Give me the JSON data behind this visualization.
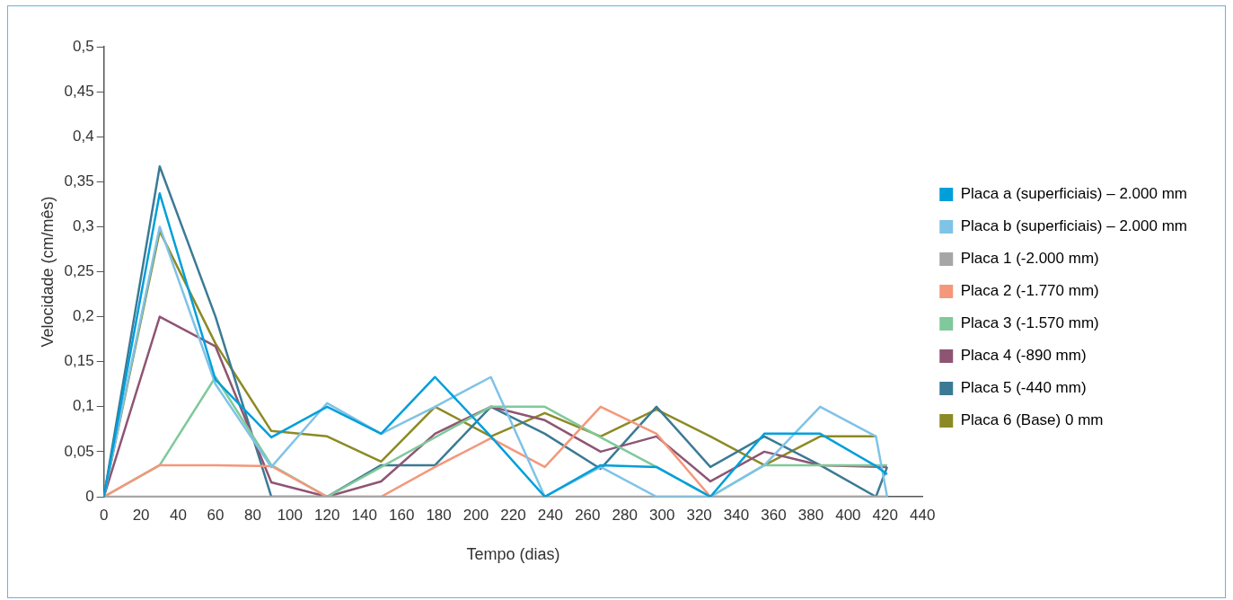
{
  "chart_data": {
    "type": "line",
    "xlabel": "Tempo (dias)",
    "ylabel": "Velocidade (cm/mês)",
    "xlim": [
      0,
      440
    ],
    "xticks": [
      0,
      20,
      40,
      60,
      80,
      100,
      120,
      140,
      160,
      180,
      200,
      220,
      240,
      260,
      280,
      300,
      320,
      340,
      360,
      380,
      400,
      420,
      440
    ],
    "ylim": [
      0,
      0.5
    ],
    "yticks": [
      {
        "value": 0,
        "label": "0"
      },
      {
        "value": 0.05,
        "label": "0,05"
      },
      {
        "value": 0.1,
        "label": "0,1"
      },
      {
        "value": 0.15,
        "label": "0,15"
      },
      {
        "value": 0.2,
        "label": "0,2"
      },
      {
        "value": 0.25,
        "label": "0,25"
      },
      {
        "value": 0.3,
        "label": "0,3"
      },
      {
        "value": 0.35,
        "label": "0,35"
      },
      {
        "value": 0.4,
        "label": "0,4"
      },
      {
        "value": 0.45,
        "label": "0,45"
      },
      {
        "value": 0.5,
        "label": "0,5"
      }
    ],
    "grid": false,
    "legend": "right",
    "marker": "none",
    "line_style": "solid",
    "series": [
      {
        "name": "Placa a (superficiais) – 2.000 mm",
        "color": "#009fda",
        "x": [
          0,
          30,
          60,
          90,
          120,
          149,
          178,
          208,
          237,
          267,
          297,
          326,
          355,
          385,
          415,
          421
        ],
        "values": [
          0,
          0.337,
          0.13,
          0.066,
          0.1,
          0.07,
          0.133,
          0.067,
          0,
          0.035,
          0.033,
          0,
          0.07,
          0.07,
          0.034,
          0.025
        ]
      },
      {
        "name": "Placa b (superficiais) – 2.000 mm",
        "color": "#7fc3e6",
        "x": [
          0,
          30,
          60,
          90,
          120,
          149,
          178,
          208,
          237,
          267,
          297,
          326,
          355,
          385,
          415,
          421
        ],
        "values": [
          0,
          0.3,
          0.125,
          0.033,
          0.104,
          0.07,
          0.1,
          0.133,
          0,
          0.033,
          0,
          0,
          0.035,
          0.1,
          0.067,
          0
        ]
      },
      {
        "name": "Placa 1 (-2.000 mm)",
        "color": "#a6a6a6",
        "x": [
          0,
          421
        ],
        "values": [
          0,
          0
        ]
      },
      {
        "name": "Placa 2 (-1.770 mm)",
        "color": "#f4977b",
        "x": [
          0,
          30,
          60,
          90,
          120,
          149,
          178,
          208,
          237,
          267,
          297,
          326,
          421
        ],
        "values": [
          0,
          0.035,
          0.035,
          0.034,
          0,
          0,
          0.033,
          0.065,
          0.033,
          0.1,
          0.07,
          0,
          0
        ]
      },
      {
        "name": "Placa 3 (-1.570 mm)",
        "color": "#7fc99a",
        "x": [
          0,
          30,
          60,
          90,
          120,
          208,
          237,
          267,
          297,
          326,
          355,
          385,
          421
        ],
        "values": [
          0,
          0.035,
          0.133,
          0.035,
          0,
          0.1,
          0.1,
          0.066,
          0.033,
          0,
          0.035,
          0.035,
          0.035
        ]
      },
      {
        "name": "Placa 4 (-890 mm)",
        "color": "#8e5573",
        "x": [
          0,
          30,
          60,
          90,
          120,
          149,
          178,
          208,
          237,
          267,
          297,
          326,
          355,
          385,
          421
        ],
        "values": [
          0,
          0.2,
          0.167,
          0.016,
          0,
          0.017,
          0.07,
          0.1,
          0.085,
          0.05,
          0.067,
          0.017,
          0.05,
          0.035,
          0.033
        ]
      },
      {
        "name": "Placa 5 (-440 mm)",
        "color": "#3b7a94",
        "x": [
          0,
          30,
          60,
          90,
          120,
          149,
          178,
          208,
          237,
          267,
          297,
          326,
          355,
          385,
          415,
          421
        ],
        "values": [
          0,
          0.367,
          0.2,
          0,
          0,
          0.035,
          0.035,
          0.1,
          0.07,
          0.031,
          0.1,
          0.033,
          0.067,
          0.035,
          0,
          0.033
        ]
      },
      {
        "name": "Placa 6 (Base) 0 mm",
        "color": "#8c8a24",
        "x": [
          0,
          30,
          60,
          90,
          120,
          149,
          178,
          208,
          237,
          267,
          297,
          326,
          355,
          385,
          415
        ],
        "values": [
          0,
          0.295,
          0.17,
          0.073,
          0.067,
          0.039,
          0.1,
          0.067,
          0.093,
          0.067,
          0.097,
          0.067,
          0.035,
          0.067,
          0.067
        ]
      }
    ]
  }
}
